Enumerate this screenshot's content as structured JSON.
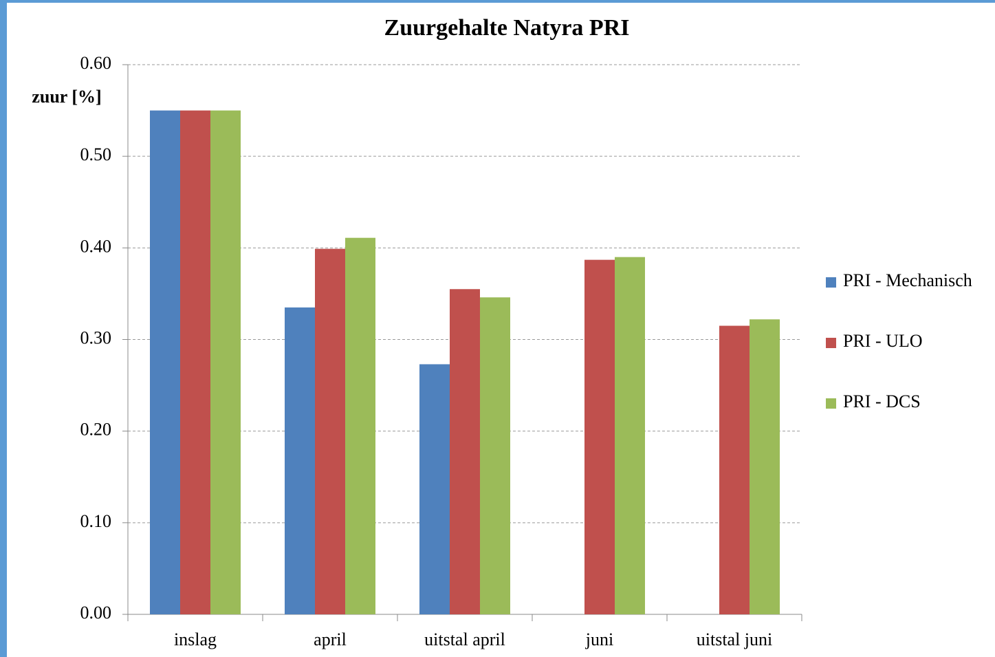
{
  "chart_data": {
    "type": "bar",
    "title": "Zuurgehalte Natyra  PRI",
    "ylabel": "zuur [%]",
    "categories": [
      "inslag",
      "april",
      "uitstal april",
      "juni",
      "uitstal juni"
    ],
    "series": [
      {
        "name": "PRI - Mechanisch",
        "color": "#4f81bd",
        "values": [
          0.55,
          0.335,
          0.273,
          null,
          null
        ]
      },
      {
        "name": "PRI - ULO",
        "color": "#c0504d",
        "values": [
          0.55,
          0.399,
          0.355,
          0.387,
          0.315
        ]
      },
      {
        "name": "PRI - DCS",
        "color": "#9bbb59",
        "values": [
          0.55,
          0.411,
          0.346,
          0.39,
          0.322
        ]
      }
    ],
    "ylim": [
      0,
      0.6
    ],
    "yticks": [
      {
        "value": 0,
        "label": "0.00"
      },
      {
        "value": 0.1,
        "label": "0.10"
      },
      {
        "value": 0.2,
        "label": "0.20"
      },
      {
        "value": 0.3,
        "label": "0.30"
      },
      {
        "value": 0.4,
        "label": "0.40"
      },
      {
        "value": 0.5,
        "label": "0.50"
      },
      {
        "value": 0.6,
        "label": "0.60"
      }
    ],
    "grid": true,
    "legend": "right"
  }
}
